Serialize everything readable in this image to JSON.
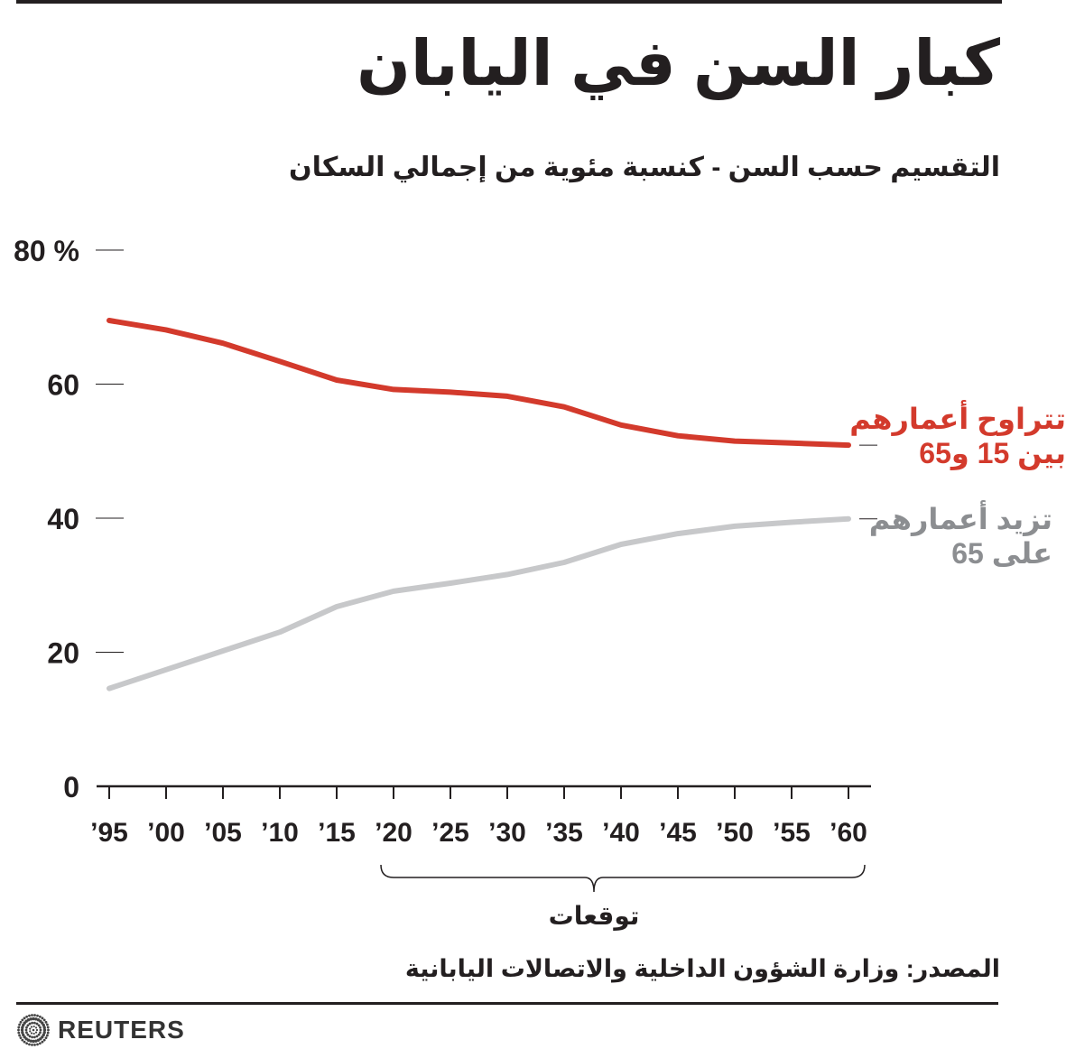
{
  "title": "كبار السن في اليابان",
  "subtitle": "التقسيم حسب السن - كنسبة مئوية من إجمالي السكان",
  "source": "المصدر: وزارة الشؤون الداخلية والاتصالات اليابانية",
  "logo": {
    "text": "REUTERS"
  },
  "chart_data": {
    "type": "line",
    "x": [
      "’95",
      "’00",
      "’05",
      "’10",
      "’15",
      "’20",
      "’25",
      "’30",
      "’35",
      "’40",
      "’45",
      "’50",
      "’55",
      "’60"
    ],
    "ylim": [
      0,
      80
    ],
    "yticks": [
      {
        "value": 80,
        "label": "80 %"
      },
      {
        "value": 60,
        "label": "60"
      },
      {
        "value": 40,
        "label": "40"
      },
      {
        "value": 20,
        "label": "20"
      },
      {
        "value": 0,
        "label": "0"
      }
    ],
    "series": [
      {
        "name_lines": [
          "تتراوح أعمارهم",
          "بين 15 و65"
        ],
        "color": "#d33a2c",
        "values": [
          69.5,
          68.1,
          66.1,
          63.4,
          60.6,
          59.2,
          58.8,
          58.2,
          56.6,
          53.9,
          52.3,
          51.5,
          51.2,
          50.9
        ]
      },
      {
        "name_lines": [
          "تزيد أعمارهم",
          "على 65"
        ],
        "color": "#c7c8ca",
        "label_color": "#8c8e91",
        "values": [
          14.6,
          17.4,
          20.2,
          23.0,
          26.8,
          29.1,
          30.3,
          31.6,
          33.4,
          36.1,
          37.7,
          38.8,
          39.4,
          39.9
        ]
      }
    ],
    "annotations": [
      {
        "text": "توقعات",
        "from": "’20",
        "to": "’60"
      }
    ],
    "grid": false
  }
}
